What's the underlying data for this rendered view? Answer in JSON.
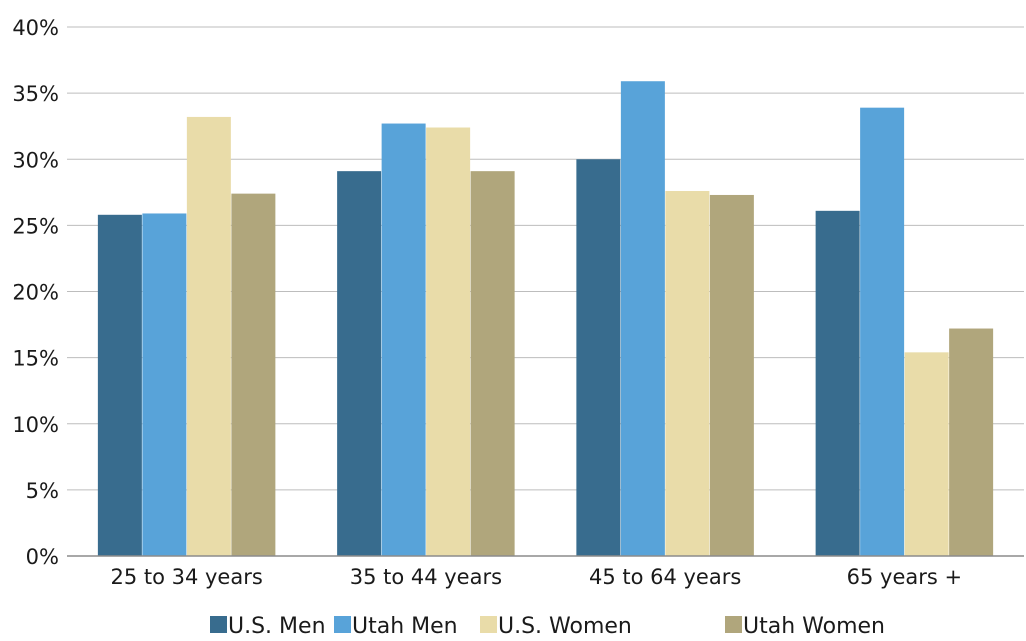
{
  "chart_data": {
    "type": "bar",
    "title": "",
    "xlabel": "",
    "ylabel": "",
    "categories": [
      "25 to 34 years",
      "35 to 44 years",
      "45 to 64 years",
      "65 years +"
    ],
    "series": [
      {
        "name": "U.S. Men",
        "color": "#386c8e",
        "values": [
          25.8,
          29.1,
          30.0,
          26.1
        ]
      },
      {
        "name": "Utah Men",
        "color": "#58a3d9",
        "values": [
          25.9,
          32.7,
          35.9,
          33.9
        ]
      },
      {
        "name": "U.S. Women",
        "color": "#e9dca9",
        "values": [
          33.2,
          32.4,
          27.6,
          15.4
        ]
      },
      {
        "name": "Utah Women",
        "color": "#b0a67c",
        "values": [
          27.4,
          29.1,
          27.3,
          17.2
        ]
      }
    ],
    "ylim": [
      0,
      40
    ],
    "yticks": [
      "0%",
      "5%",
      "10%",
      "15%",
      "20%",
      "25%",
      "30%",
      "35%",
      "40%"
    ],
    "grid": true,
    "legend_position": "bottom"
  }
}
